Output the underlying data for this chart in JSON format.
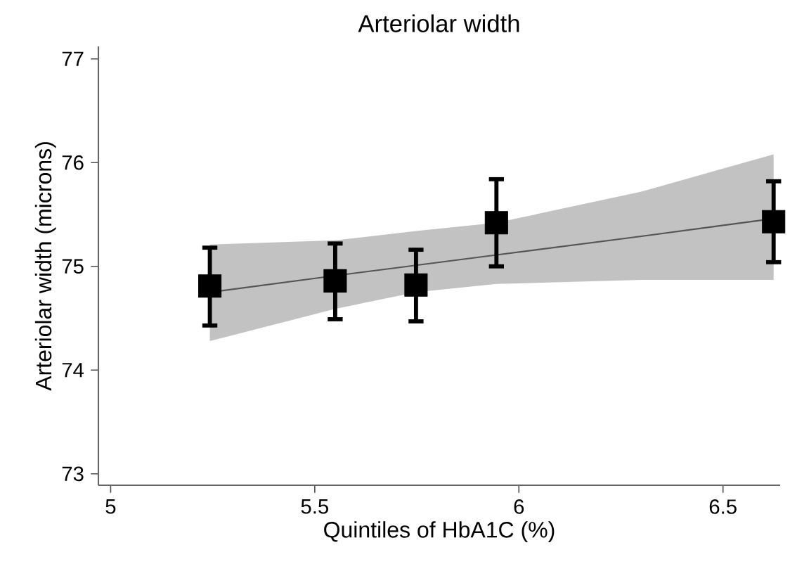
{
  "chart_data": {
    "type": "scatter",
    "title": "Arteriolar width",
    "xlabel": "Quintiles of HbA1C (%)",
    "ylabel": "Arteriolar width (microns)",
    "xlim": [
      4.97,
      6.64
    ],
    "ylim": [
      72.89,
      77.12
    ],
    "xticks": [
      5,
      5.5,
      6,
      6.5
    ],
    "yticks": [
      73,
      74,
      75,
      76,
      77
    ],
    "grid": false,
    "marker": "square",
    "series": [
      {
        "type": "line",
        "color": "#555555",
        "line_style": "solid",
        "marker": "none",
        "x": [
          5.243,
          5.55,
          5.748,
          5.945,
          6.3,
          6.624
        ],
        "values": [
          74.75,
          74.91,
          75.01,
          75.11,
          75.29,
          75.46
        ],
        "lower": [
          74.28,
          74.59,
          74.75,
          74.83,
          74.87,
          74.87
        ],
        "upper": [
          75.21,
          75.25,
          75.34,
          75.42,
          75.72,
          76.08
        ]
      },
      {
        "color": "#000000",
        "x": [
          5.243,
          5.55,
          5.748,
          5.945,
          6.624
        ],
        "values": [
          74.81,
          74.86,
          74.82,
          75.42,
          75.43
        ],
        "errors": [
          [
            74.43,
            75.18
          ],
          [
            74.49,
            75.22
          ],
          [
            74.47,
            75.16
          ],
          [
            75.0,
            75.84
          ],
          [
            75.04,
            75.82
          ]
        ]
      }
    ]
  }
}
